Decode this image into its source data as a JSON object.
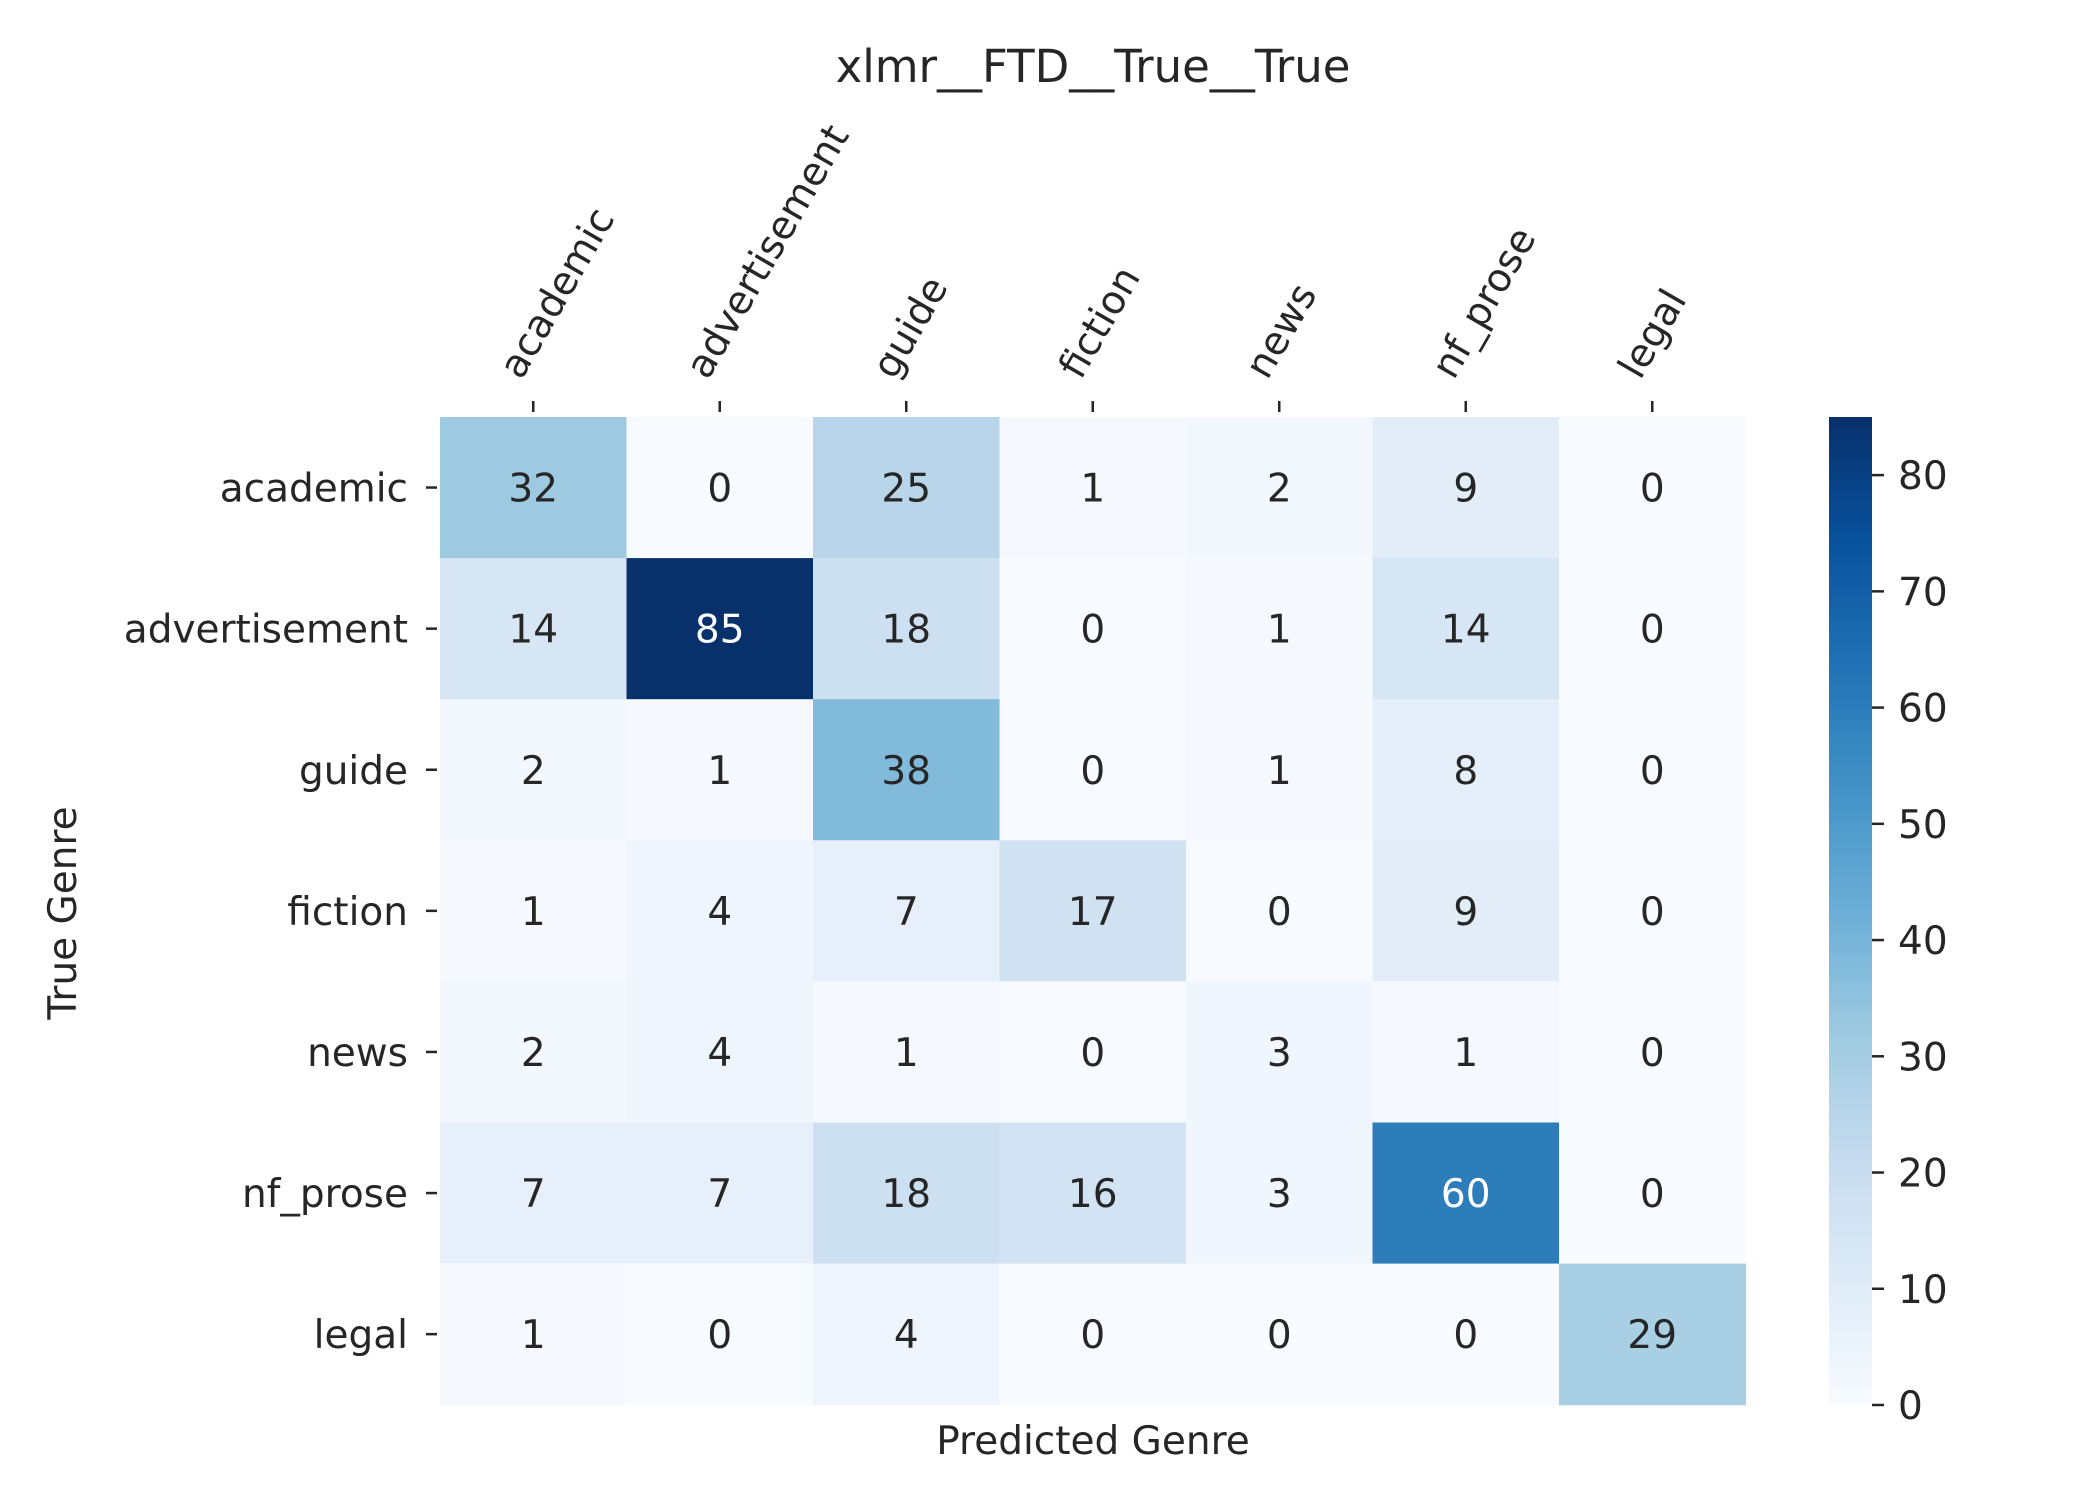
{
  "chart_data": {
    "type": "heatmap",
    "title": "xlmr__FTD__True__True",
    "xlabel": "Predicted Genre",
    "ylabel": "True Genre",
    "x_categories": [
      "academic",
      "advertisement",
      "guide",
      "fiction",
      "news",
      "nf_prose",
      "legal"
    ],
    "y_categories": [
      "academic",
      "advertisement",
      "guide",
      "fiction",
      "news",
      "nf_prose",
      "legal"
    ],
    "values": [
      [
        32,
        0,
        25,
        1,
        2,
        9,
        0
      ],
      [
        14,
        85,
        18,
        0,
        1,
        14,
        0
      ],
      [
        2,
        1,
        38,
        0,
        1,
        8,
        0
      ],
      [
        1,
        4,
        7,
        17,
        0,
        9,
        0
      ],
      [
        2,
        4,
        1,
        0,
        3,
        1,
        0
      ],
      [
        7,
        7,
        18,
        16,
        3,
        60,
        0
      ],
      [
        1,
        0,
        4,
        0,
        0,
        0,
        29
      ]
    ],
    "colorbar": {
      "min": 0,
      "max": 85,
      "ticks": [
        0,
        10,
        20,
        30,
        40,
        50,
        60,
        70,
        80
      ],
      "colormap": "Blues"
    },
    "x_tick_position": "top",
    "x_tick_rotation_deg": 60,
    "annotated": true,
    "grid": false
  }
}
